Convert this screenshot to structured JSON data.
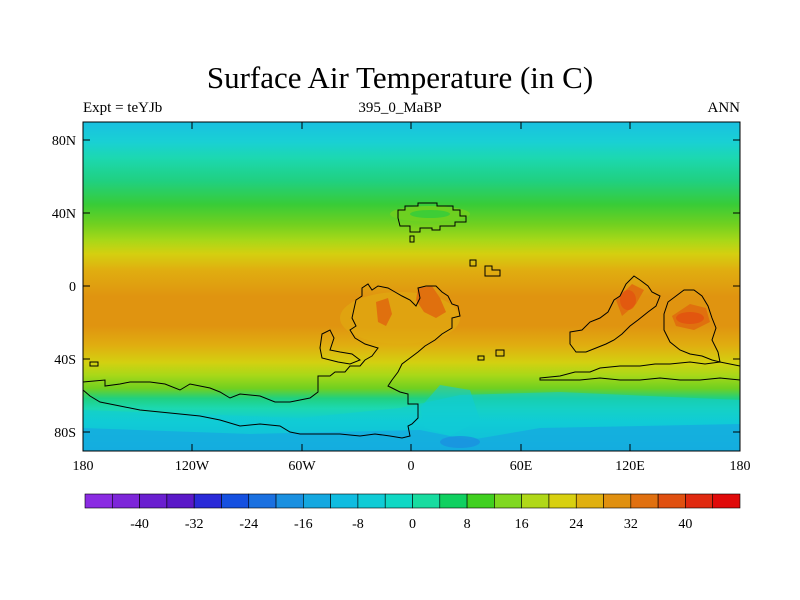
{
  "title": "Surface Air Temperature (in C)",
  "subtitle_left": "Expt = teYJb",
  "subtitle_center": "395_0_MaBP",
  "subtitle_right": "ANN",
  "y_ticks": [
    "80N",
    "40N",
    "0",
    "40S",
    "80S"
  ],
  "x_ticks": [
    "180",
    "120W",
    "60W",
    "0",
    "60E",
    "120E",
    "180"
  ],
  "colorbar": {
    "labels": [
      "-40",
      "-32",
      "-24",
      "-16",
      "-8",
      "0",
      "8",
      "16",
      "24",
      "32",
      "40"
    ],
    "colors": [
      "#8a2be2",
      "#7d26d9",
      "#6a1fd0",
      "#5a18c8",
      "#2a2ad8",
      "#1550e0",
      "#1a70e0",
      "#1a90e0",
      "#15a8e0",
      "#10bce0",
      "#10ccd6",
      "#10d8c4",
      "#18dca0",
      "#10d060",
      "#40d020",
      "#80d820",
      "#b0d818",
      "#d8d010",
      "#e0b010",
      "#e09010",
      "#e07010",
      "#e05010",
      "#e02a10",
      "#e00a0a"
    ]
  },
  "map_extent": {
    "lon": [
      -180,
      180
    ],
    "lat": [
      -90,
      90
    ]
  },
  "field_colors": {
    "bands": [
      "#19c0e0",
      "#19d0d4",
      "#1cd8b0",
      "#20d080",
      "#38cc38",
      "#70d020",
      "#a8d818",
      "#d4d010",
      "#e0ae10",
      "#e09410"
    ],
    "hot": "#e0700e",
    "hotter": "#e25010"
  }
}
